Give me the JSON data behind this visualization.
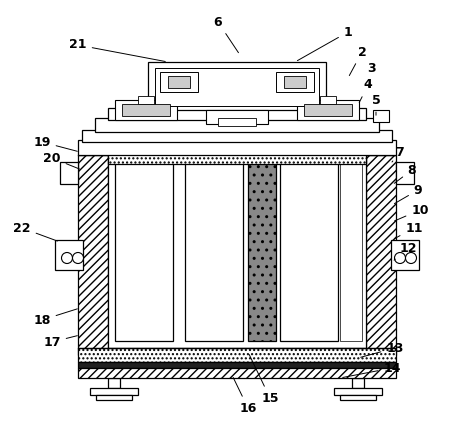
{
  "bg_color": "#ffffff",
  "lc": "#000000",
  "label_fontsize": 9,
  "leaders": [
    [
      "1",
      348,
      32,
      295,
      62
    ],
    [
      "2",
      362,
      52,
      348,
      78
    ],
    [
      "3",
      372,
      68,
      368,
      90
    ],
    [
      "4",
      368,
      85,
      358,
      105
    ],
    [
      "5",
      376,
      100,
      376,
      118
    ],
    [
      "6",
      218,
      22,
      240,
      55
    ],
    [
      "7",
      400,
      152,
      392,
      162
    ],
    [
      "8",
      412,
      170,
      392,
      185
    ],
    [
      "9",
      418,
      190,
      392,
      205
    ],
    [
      "10",
      420,
      210,
      392,
      222
    ],
    [
      "11",
      414,
      228,
      392,
      240
    ],
    [
      "12",
      408,
      248,
      392,
      262
    ],
    [
      "13",
      395,
      348,
      358,
      358
    ],
    [
      "14",
      392,
      368,
      340,
      378
    ],
    [
      "15",
      270,
      398,
      248,
      352
    ],
    [
      "16",
      248,
      408,
      232,
      375
    ],
    [
      "17",
      52,
      342,
      80,
      335
    ],
    [
      "18",
      42,
      320,
      80,
      308
    ],
    [
      "19",
      42,
      142,
      80,
      152
    ],
    [
      "20",
      52,
      158,
      82,
      170
    ],
    [
      "21",
      78,
      45,
      168,
      62
    ],
    [
      "22",
      22,
      228,
      60,
      242
    ]
  ]
}
